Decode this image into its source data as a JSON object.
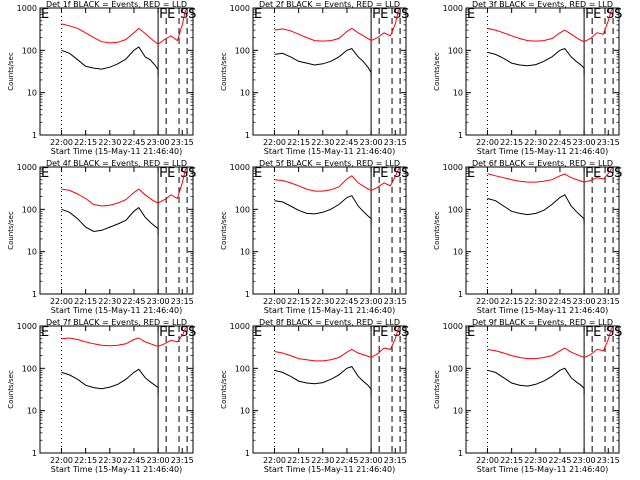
{
  "chart_data": [
    {
      "type": "line",
      "title": "Det 1f BLACK = Events, RED = LLD",
      "xlabel": "Start Time (15-May-11 21:46:40)",
      "ylabel": "Counts/sec",
      "yscale": "log",
      "ylim": [
        1,
        1000
      ],
      "xticks": [
        "22:00",
        "22:15",
        "22:30",
        "22:45",
        "23:00",
        "23:15"
      ],
      "yticks": [
        "1",
        "10",
        "100",
        "1000"
      ],
      "vmarkers": [
        "E",
        "F",
        "E",
        "S",
        "S"
      ],
      "series": [
        {
          "color": "#ff0000",
          "x": [
            "22:00",
            "22:05",
            "22:10",
            "22:15",
            "22:20",
            "22:25",
            "22:30",
            "22:35",
            "22:40",
            "22:45",
            "22:48",
            "22:52",
            "22:57",
            "23:00",
            "23:04",
            "23:08",
            "23:12",
            "23:15",
            "23:17"
          ],
          "y": [
            420,
            380,
            330,
            260,
            200,
            160,
            150,
            155,
            180,
            260,
            330,
            250,
            170,
            140,
            180,
            220,
            170,
            400,
            900
          ]
        },
        {
          "color": "#000000",
          "x": [
            "22:00",
            "22:05",
            "22:10",
            "22:15",
            "22:20",
            "22:25",
            "22:30",
            "22:35",
            "22:40",
            "22:45",
            "22:48",
            "22:52",
            "22:55",
            "22:58",
            "23:00"
          ],
          "y": [
            100,
            85,
            60,
            42,
            38,
            36,
            40,
            48,
            62,
            100,
            120,
            70,
            60,
            45,
            35
          ]
        }
      ]
    },
    {
      "type": "line",
      "title": "Det 2f BLACK = Events, RED = LLD",
      "xlabel": "Start Time (15-May-11 21:46:40)",
      "ylabel": "Counts/sec",
      "yscale": "log",
      "ylim": [
        1,
        1000
      ],
      "xticks": [
        "22:00",
        "22:15",
        "22:30",
        "22:45",
        "23:00",
        "23:15"
      ],
      "yticks": [
        "1",
        "10",
        "100",
        "1000"
      ],
      "vmarkers": [
        "E",
        "F",
        "E",
        "S",
        "S"
      ],
      "series": [
        {
          "color": "#ff0000",
          "x": [
            "22:00",
            "22:05",
            "22:10",
            "22:15",
            "22:20",
            "22:25",
            "22:30",
            "22:35",
            "22:40",
            "22:45",
            "22:48",
            "22:52",
            "22:57",
            "23:00",
            "23:04",
            "23:08",
            "23:12",
            "23:15",
            "23:17"
          ],
          "y": [
            300,
            320,
            290,
            240,
            200,
            170,
            165,
            170,
            190,
            280,
            330,
            260,
            200,
            170,
            200,
            260,
            220,
            420,
            900
          ]
        },
        {
          "color": "#000000",
          "x": [
            "22:00",
            "22:05",
            "22:10",
            "22:15",
            "22:20",
            "22:25",
            "22:30",
            "22:35",
            "22:40",
            "22:45",
            "22:48",
            "22:52",
            "22:55",
            "22:58",
            "23:00"
          ],
          "y": [
            80,
            85,
            70,
            55,
            50,
            45,
            48,
            55,
            70,
            100,
            110,
            70,
            55,
            40,
            30
          ]
        }
      ]
    },
    {
      "type": "line",
      "title": "Det 3f BLACK = Events, RED = LLD",
      "xlabel": "Start Time (15-May-11 21:46:40)",
      "ylabel": "Counts/sec",
      "yscale": "log",
      "ylim": [
        1,
        1000
      ],
      "xticks": [
        "22:00",
        "22:15",
        "22:30",
        "22:45",
        "23:00",
        "23:15"
      ],
      "yticks": [
        "1",
        "10",
        "100",
        "1000"
      ],
      "vmarkers": [
        "E",
        "F",
        "E",
        "S",
        "S"
      ],
      "series": [
        {
          "color": "#ff0000",
          "x": [
            "22:00",
            "22:05",
            "22:10",
            "22:15",
            "22:20",
            "22:25",
            "22:30",
            "22:35",
            "22:40",
            "22:45",
            "22:48",
            "22:52",
            "22:57",
            "23:00",
            "23:04",
            "23:08",
            "23:12",
            "23:15",
            "23:17"
          ],
          "y": [
            330,
            300,
            260,
            220,
            190,
            170,
            165,
            170,
            190,
            260,
            300,
            240,
            180,
            160,
            190,
            260,
            240,
            500,
            900
          ]
        },
        {
          "color": "#000000",
          "x": [
            "22:00",
            "22:05",
            "22:10",
            "22:15",
            "22:20",
            "22:25",
            "22:30",
            "22:35",
            "22:40",
            "22:45",
            "22:48",
            "22:52",
            "22:55",
            "22:58",
            "23:00"
          ],
          "y": [
            90,
            80,
            65,
            50,
            45,
            43,
            46,
            55,
            70,
            100,
            110,
            70,
            55,
            45,
            38
          ]
        }
      ]
    },
    {
      "type": "line",
      "title": "Det 4f BLACK = Events, RED = LLD",
      "xlabel": "Start Time (15-May-11 21:46:40)",
      "ylabel": "Counts/sec",
      "yscale": "log",
      "ylim": [
        1,
        1000
      ],
      "xticks": [
        "22:00",
        "22:15",
        "22:30",
        "22:45",
        "23:00",
        "23:15"
      ],
      "yticks": [
        "1",
        "10",
        "100",
        "1000"
      ],
      "vmarkers": [
        "E",
        "F",
        "E",
        "S",
        "S"
      ],
      "series": [
        {
          "color": "#ff0000",
          "x": [
            "22:00",
            "22:05",
            "22:10",
            "22:15",
            "22:20",
            "22:25",
            "22:30",
            "22:35",
            "22:40",
            "22:45",
            "22:48",
            "22:52",
            "22:57",
            "23:00",
            "23:04",
            "23:08",
            "23:12",
            "23:15",
            "23:17"
          ],
          "y": [
            300,
            280,
            230,
            180,
            130,
            120,
            125,
            140,
            170,
            250,
            300,
            220,
            160,
            140,
            170,
            220,
            180,
            420,
            900
          ]
        },
        {
          "color": "#000000",
          "x": [
            "22:00",
            "22:05",
            "22:10",
            "22:15",
            "22:20",
            "22:25",
            "22:30",
            "22:35",
            "22:40",
            "22:45",
            "22:48",
            "22:52",
            "22:55",
            "22:58",
            "23:00"
          ],
          "y": [
            100,
            85,
            60,
            38,
            30,
            32,
            38,
            45,
            55,
            90,
            110,
            65,
            50,
            40,
            35
          ]
        }
      ]
    },
    {
      "type": "line",
      "title": "Det 5f BLACK = Events, RED = LLD",
      "xlabel": "Start Time (15-May-11 21:46:40)",
      "ylabel": "Counts/sec",
      "yscale": "log",
      "ylim": [
        1,
        1000
      ],
      "xticks": [
        "22:00",
        "22:15",
        "22:30",
        "22:45",
        "23:00",
        "23:15"
      ],
      "yticks": [
        "1",
        "10",
        "100",
        "1000"
      ],
      "vmarkers": [
        "E",
        "F",
        "E",
        "S",
        "S"
      ],
      "series": [
        {
          "color": "#ff0000",
          "x": [
            "22:00",
            "22:05",
            "22:10",
            "22:15",
            "22:20",
            "22:25",
            "22:30",
            "22:35",
            "22:40",
            "22:45",
            "22:48",
            "22:52",
            "22:57",
            "23:00",
            "23:04",
            "23:08",
            "23:12",
            "23:15",
            "23:17"
          ],
          "y": [
            500,
            480,
            420,
            360,
            300,
            270,
            270,
            290,
            340,
            520,
            620,
            420,
            320,
            280,
            330,
            420,
            360,
            600,
            900
          ]
        },
        {
          "color": "#000000",
          "x": [
            "22:00",
            "22:05",
            "22:10",
            "22:15",
            "22:20",
            "22:25",
            "22:30",
            "22:35",
            "22:40",
            "22:45",
            "22:48",
            "22:52",
            "22:55",
            "22:58",
            "23:00"
          ],
          "y": [
            160,
            150,
            120,
            95,
            80,
            78,
            85,
            100,
            130,
            190,
            210,
            120,
            90,
            70,
            60
          ]
        }
      ]
    },
    {
      "type": "line",
      "title": "Det 6f BLACK = Events, RED = LLD",
      "xlabel": "Start Time (15-May-11 21:46:40)",
      "ylabel": "Counts/sec",
      "yscale": "log",
      "ylim": [
        1,
        1000
      ],
      "xticks": [
        "22:00",
        "22:15",
        "22:30",
        "22:45",
        "23:00",
        "23:15"
      ],
      "yticks": [
        "1",
        "10",
        "100",
        "1000"
      ],
      "vmarkers": [
        "E",
        "F",
        "E",
        "S",
        "S"
      ],
      "series": [
        {
          "color": "#ff0000",
          "x": [
            "22:00",
            "22:05",
            "22:10",
            "22:15",
            "22:20",
            "22:25",
            "22:30",
            "22:35",
            "22:40",
            "22:45",
            "22:48",
            "22:52",
            "22:57",
            "23:00",
            "23:04",
            "23:08",
            "23:12",
            "23:15",
            "23:17"
          ],
          "y": [
            700,
            620,
            560,
            500,
            460,
            440,
            440,
            460,
            500,
            620,
            680,
            560,
            480,
            440,
            480,
            560,
            520,
            700,
            900
          ]
        },
        {
          "color": "#000000",
          "x": [
            "22:00",
            "22:05",
            "22:10",
            "22:15",
            "22:20",
            "22:25",
            "22:30",
            "22:35",
            "22:40",
            "22:45",
            "22:48",
            "22:52",
            "22:55",
            "22:58",
            "23:00"
          ],
          "y": [
            180,
            160,
            120,
            90,
            80,
            75,
            80,
            95,
            130,
            190,
            220,
            120,
            90,
            70,
            60
          ]
        }
      ]
    },
    {
      "type": "line",
      "title": "Det 7f BLACK = Events, RED = LLD",
      "xlabel": "Start Time (15-May-11 21:46:40)",
      "ylabel": "Counts/sec",
      "yscale": "log",
      "ylim": [
        1,
        1000
      ],
      "xticks": [
        "22:00",
        "22:15",
        "22:30",
        "22:45",
        "23:00",
        "23:15"
      ],
      "yticks": [
        "1",
        "10",
        "100",
        "1000"
      ],
      "vmarkers": [
        "E",
        "F",
        "E",
        "S",
        "S"
      ],
      "series": [
        {
          "color": "#ff0000",
          "x": [
            "22:00",
            "22:05",
            "22:10",
            "22:15",
            "22:20",
            "22:25",
            "22:30",
            "22:35",
            "22:40",
            "22:45",
            "22:48",
            "22:52",
            "22:57",
            "23:00",
            "23:04",
            "23:08",
            "23:12",
            "23:15",
            "23:17"
          ],
          "y": [
            500,
            520,
            480,
            420,
            380,
            350,
            340,
            350,
            380,
            480,
            520,
            420,
            360,
            330,
            380,
            460,
            420,
            600,
            900
          ]
        },
        {
          "color": "#000000",
          "x": [
            "22:00",
            "22:05",
            "22:10",
            "22:15",
            "22:20",
            "22:25",
            "22:30",
            "22:35",
            "22:40",
            "22:45",
            "22:48",
            "22:52",
            "22:55",
            "22:58",
            "23:00"
          ],
          "y": [
            80,
            70,
            55,
            40,
            35,
            33,
            36,
            42,
            55,
            80,
            95,
            60,
            48,
            40,
            35
          ]
        }
      ]
    },
    {
      "type": "line",
      "title": "Det 8f BLACK = Events, RED = LLD",
      "xlabel": "Start Time (15-May-11 21:46:40)",
      "ylabel": "Counts/sec",
      "yscale": "log",
      "ylim": [
        1,
        1000
      ],
      "xticks": [
        "22:00",
        "22:15",
        "22:30",
        "22:45",
        "23:00",
        "23:15"
      ],
      "yticks": [
        "1",
        "10",
        "100",
        "1000"
      ],
      "vmarkers": [
        "E",
        "F",
        "E",
        "S",
        "S"
      ],
      "series": [
        {
          "color": "#ff0000",
          "x": [
            "22:00",
            "22:05",
            "22:10",
            "22:15",
            "22:20",
            "22:25",
            "22:30",
            "22:35",
            "22:40",
            "22:45",
            "22:48",
            "22:52",
            "22:57",
            "23:00",
            "23:04",
            "23:08",
            "23:12",
            "23:15",
            "23:17"
          ],
          "y": [
            250,
            230,
            200,
            170,
            160,
            150,
            150,
            160,
            180,
            240,
            280,
            230,
            200,
            180,
            220,
            300,
            280,
            500,
            900
          ]
        },
        {
          "color": "#000000",
          "x": [
            "22:00",
            "22:05",
            "22:10",
            "22:15",
            "22:20",
            "22:25",
            "22:30",
            "22:35",
            "22:40",
            "22:45",
            "22:48",
            "22:52",
            "22:55",
            "22:58",
            "23:00"
          ],
          "y": [
            90,
            80,
            65,
            50,
            45,
            43,
            46,
            55,
            70,
            100,
            110,
            65,
            50,
            40,
            32
          ]
        }
      ]
    },
    {
      "type": "line",
      "title": "Det 9f BLACK = Events, RED = LLD",
      "xlabel": "Start Time (15-May-11 21:46:40)",
      "ylabel": "Counts/sec",
      "yscale": "log",
      "ylim": [
        1,
        1000
      ],
      "xticks": [
        "22:00",
        "22:15",
        "22:30",
        "22:45",
        "23:00",
        "23:15"
      ],
      "yticks": [
        "1",
        "10",
        "100",
        "1000"
      ],
      "vmarkers": [
        "E",
        "F",
        "E",
        "S",
        "S"
      ],
      "series": [
        {
          "color": "#ff0000",
          "x": [
            "22:00",
            "22:05",
            "22:10",
            "22:15",
            "22:20",
            "22:25",
            "22:30",
            "22:35",
            "22:40",
            "22:45",
            "22:48",
            "22:52",
            "22:57",
            "23:00",
            "23:04",
            "23:08",
            "23:12",
            "23:15",
            "23:17"
          ],
          "y": [
            280,
            260,
            230,
            200,
            180,
            170,
            170,
            180,
            200,
            260,
            300,
            240,
            200,
            180,
            210,
            280,
            260,
            480,
            900
          ]
        },
        {
          "color": "#000000",
          "x": [
            "22:00",
            "22:05",
            "22:10",
            "22:15",
            "22:20",
            "22:25",
            "22:30",
            "22:35",
            "22:40",
            "22:45",
            "22:48",
            "22:52",
            "22:55",
            "22:58",
            "23:00"
          ],
          "y": [
            90,
            80,
            60,
            45,
            40,
            38,
            42,
            50,
            65,
            90,
            100,
            60,
            48,
            40,
            34
          ]
        }
      ]
    }
  ]
}
